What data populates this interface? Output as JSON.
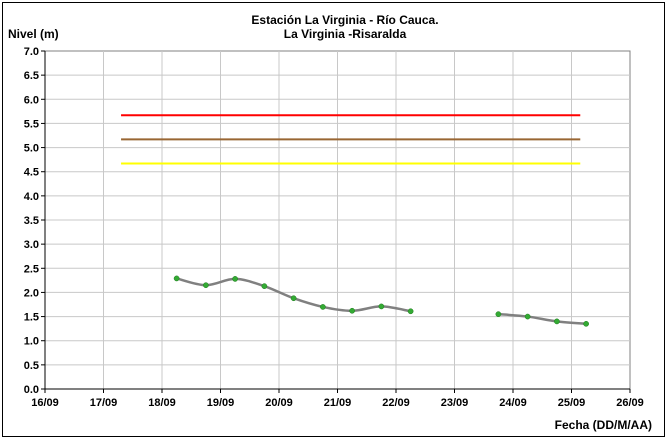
{
  "chart_data": {
    "type": "line",
    "title": "Estación La Virginia  - Río Cauca.",
    "subtitle": "La Virginia -Risaralda",
    "ylabel": "Nivel (m)",
    "xlabel": "Fecha (DD/M/AA)",
    "ylim": [
      0,
      7.0
    ],
    "yticks": [
      "0.0",
      "0.5",
      "1.0",
      "1.5",
      "2.0",
      "2.5",
      "3.0",
      "3.5",
      "4.0",
      "4.5",
      "5.0",
      "5.5",
      "6.0",
      "6.5",
      "7.0"
    ],
    "xlim": [
      0,
      10
    ],
    "xticks": [
      "16/09",
      "17/09",
      "18/09",
      "19/09",
      "20/09",
      "21/09",
      "22/09",
      "23/09",
      "24/09",
      "25/09",
      "26/09"
    ],
    "grid": true,
    "threshold_lines": [
      {
        "y": 5.67,
        "x_start": 1.3,
        "x_end": 9.15,
        "color": "#ff0000"
      },
      {
        "y": 5.17,
        "x_start": 1.3,
        "x_end": 9.15,
        "color": "#996633"
      },
      {
        "y": 4.67,
        "x_start": 1.3,
        "x_end": 9.15,
        "color": "#ffff00"
      }
    ],
    "series": [
      {
        "line_color": "#808080",
        "marker_color": "#33aa33",
        "segments": [
          {
            "x": [
              2.25,
              2.75,
              3.25,
              3.75,
              4.25,
              4.75,
              5.25,
              5.75,
              6.25
            ],
            "y": [
              2.29,
              2.15,
              2.28,
              2.13,
              1.88,
              1.7,
              1.62,
              1.71,
              1.61
            ]
          },
          {
            "x": [
              7.75,
              8.25,
              8.75,
              9.25
            ],
            "y": [
              1.55,
              1.5,
              1.4,
              1.35
            ]
          }
        ]
      }
    ]
  }
}
